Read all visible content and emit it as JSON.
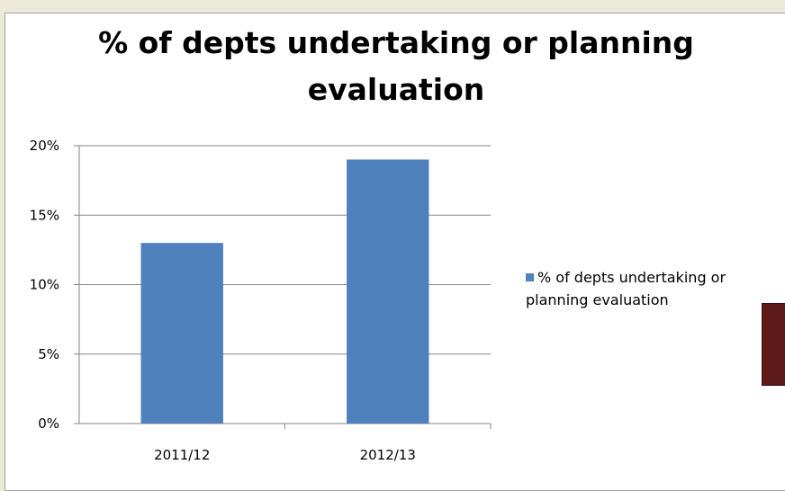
{
  "chart_data": {
    "type": "bar",
    "title": "% of depts undertaking or planning evaluation",
    "categories": [
      "2011/12",
      "2012/13"
    ],
    "series": [
      {
        "name": "% of depts undertaking or planning evaluation",
        "values": [
          13,
          19
        ],
        "color": "#4f81bd"
      }
    ],
    "yticks": [
      "0%",
      "5%",
      "10%",
      "15%",
      "20%"
    ],
    "ylim": [
      0,
      20
    ],
    "grid": true,
    "legend": "right"
  }
}
